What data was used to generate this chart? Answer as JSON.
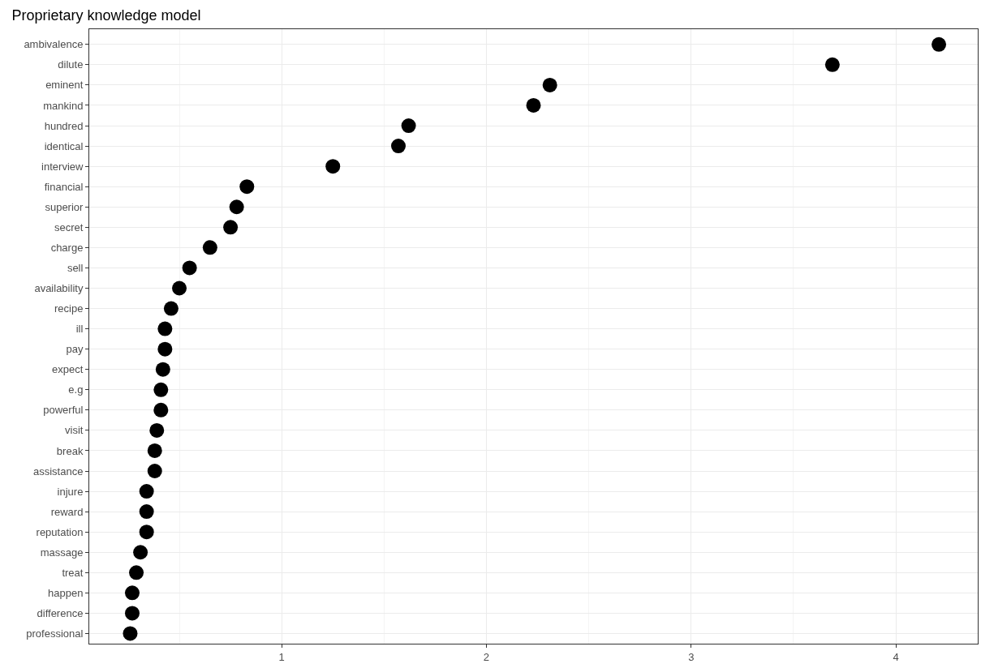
{
  "chart_data": {
    "type": "scatter",
    "title": "Proprietary knowledge model",
    "categories": [
      "ambivalence",
      "dilute",
      "eminent",
      "mankind",
      "hundred",
      "identical",
      "interview",
      "financial",
      "superior",
      "secret",
      "charge",
      "sell",
      "availability",
      "recipe",
      "ill",
      "pay",
      "expect",
      "e.g",
      "powerful",
      "visit",
      "break",
      "assistance",
      "injure",
      "reward",
      "reputation",
      "massage",
      "treat",
      "happen",
      "difference",
      "professional"
    ],
    "orientation": "horizontal",
    "values": [
      4.21,
      3.69,
      2.31,
      2.23,
      1.62,
      1.57,
      1.25,
      0.83,
      0.78,
      0.75,
      0.65,
      0.55,
      0.5,
      0.46,
      0.43,
      0.43,
      0.42,
      0.41,
      0.41,
      0.39,
      0.38,
      0.38,
      0.34,
      0.34,
      0.34,
      0.31,
      0.29,
      0.27,
      0.27,
      0.26
    ],
    "color": "#000000",
    "marker": "circle",
    "xlim": [
      0.06,
      4.4
    ],
    "xticks": [
      1,
      2,
      3,
      4
    ],
    "grid": true
  }
}
